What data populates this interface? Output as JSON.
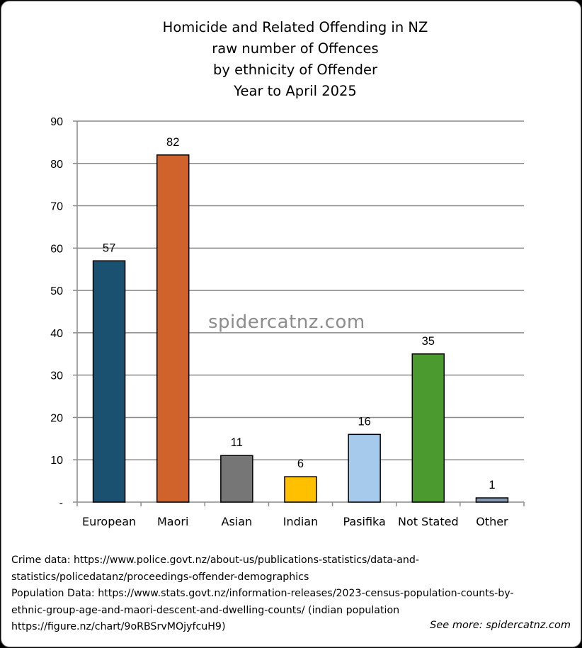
{
  "chart_data": {
    "type": "bar",
    "title_lines": [
      "Homicide and Related Offending in NZ",
      "raw number of Offences",
      "by ethnicity of Offender",
      "Year to April 2025"
    ],
    "categories": [
      "European",
      "Maori",
      "Asian",
      "Indian",
      "Pasifika",
      "Not Stated",
      "Other"
    ],
    "values": [
      57,
      82,
      11,
      6,
      16,
      35,
      1
    ],
    "data_labels": [
      "57",
      "82",
      "11",
      "6",
      "16",
      "35",
      "1"
    ],
    "colors": [
      "#1a5070",
      "#d0622b",
      "#767676",
      "#ffc000",
      "#a6caec",
      "#4a9a2f",
      "#8497b0"
    ],
    "ylim": [
      0,
      90
    ],
    "yticks": [
      0,
      10,
      20,
      30,
      40,
      50,
      60,
      70,
      80,
      90
    ],
    "ytick_labels": [
      "-",
      "10",
      "20",
      "30",
      "40",
      "50",
      "60",
      "70",
      "80",
      "90"
    ],
    "grid": true,
    "legend": "none"
  },
  "watermark": "spidercatnz.com",
  "sources": [
    "Crime data: https://www.police.govt.nz/about-us/publications-statistics/data-and-",
    "statistics/policedatanz/proceedings-offender-demographics",
    "Population Data: https://www.stats.govt.nz/information-releases/2023-census-population-counts-by-",
    "ethnic-group-age-and-maori-descent-and-dwelling-counts/ (indian population",
    "https://figure.nz/chart/9oRBSrvMOjyfcuH9)"
  ],
  "see_more": "See more: spidercatnz.com"
}
